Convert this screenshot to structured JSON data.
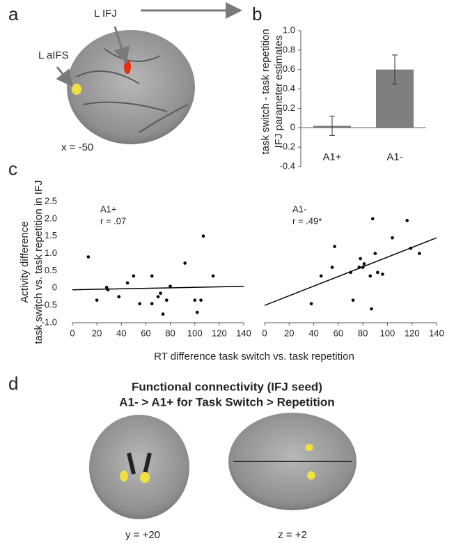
{
  "panels": {
    "a": {
      "letter": "a",
      "labels": [
        "L IFJ",
        "L aIFS"
      ],
      "coordinate": "x = -50"
    },
    "b": {
      "letter": "b"
    },
    "c": {
      "letter": "c",
      "ylabel": [
        "Activity difference",
        "task switch vs. task repetition in IFJ"
      ],
      "xlabel": "RT difference task switch vs. task repetition"
    },
    "d": {
      "letter": "d",
      "title": [
        "Functional connectivity (IFJ seed)",
        "A1- > A1+  for Task Switch > Repetition"
      ],
      "coordinates": [
        "y = +20",
        "z = +2"
      ]
    }
  },
  "chart_data": [
    {
      "type": "bar",
      "ylabel": [
        "task switch - task repetition",
        "IFJ parameter estimates"
      ],
      "categories": [
        "A1+",
        "A1-"
      ],
      "values": [
        0.02,
        0.6
      ],
      "errors": [
        0.1,
        0.15
      ],
      "color": "#7f7f7f",
      "ylim": [
        -0.4,
        1.0
      ],
      "yticks": [
        {
          "value": -0.4,
          "label": "-0.4"
        },
        {
          "value": -0.2,
          "label": "-0.2"
        },
        0,
        0.2,
        0.4,
        0.6,
        0.8,
        {
          "value": 1.0,
          "label": "1.0"
        }
      ]
    },
    {
      "type": "scatter",
      "annotations": [
        "A1+",
        "r = .07"
      ],
      "color": "#000000",
      "x": [
        13,
        20,
        28,
        29,
        38,
        38,
        45,
        50,
        55,
        65,
        65,
        70,
        72,
        74,
        77,
        80,
        92,
        100,
        102,
        105,
        107,
        115
      ],
      "values": [
        0.9,
        -0.35,
        0.02,
        -0.05,
        -0.25,
        -0.25,
        0.15,
        0.35,
        -0.45,
        0.35,
        -0.45,
        -0.25,
        -0.15,
        -0.75,
        -0.35,
        0.05,
        0.72,
        -0.35,
        -0.7,
        -0.35,
        1.5,
        0.35
      ],
      "fit": {
        "x": [
          0,
          140
        ],
        "values": [
          -0.05,
          0.05
        ]
      },
      "xlim": [
        0,
        140
      ],
      "xticks": [
        0,
        20,
        40,
        60,
        80,
        100,
        120,
        140
      ],
      "ylim": [
        -1.0,
        2.5
      ],
      "yticks": [
        {
          "value": -1.0,
          "label": "-1.0"
        },
        -0.5,
        0,
        0.5,
        {
          "value": 1.0,
          "label": "1.0"
        },
        1.5,
        {
          "value": 2.0,
          "label": "2.0"
        },
        2.5
      ]
    },
    {
      "type": "scatter",
      "annotations": [
        "A1-",
        "r = .49*"
      ],
      "color": "#000000",
      "x": [
        38,
        46,
        55,
        57,
        70,
        72,
        77,
        78,
        80,
        81,
        86,
        87,
        88,
        90,
        92,
        96,
        104,
        116,
        119,
        126
      ],
      "values": [
        -0.45,
        0.35,
        0.6,
        1.2,
        0.45,
        -0.35,
        0.6,
        0.85,
        0.6,
        0.7,
        0.35,
        -0.6,
        2.0,
        1.0,
        0.45,
        0.4,
        1.45,
        1.95,
        1.15,
        1.0
      ],
      "fit": {
        "x": [
          0,
          140
        ],
        "values": [
          -0.5,
          1.45
        ]
      },
      "xlim": [
        0,
        140
      ],
      "xticks": [
        0,
        20,
        40,
        60,
        80,
        100,
        120,
        140
      ],
      "ylim": [
        -1.0,
        2.5
      ]
    }
  ]
}
